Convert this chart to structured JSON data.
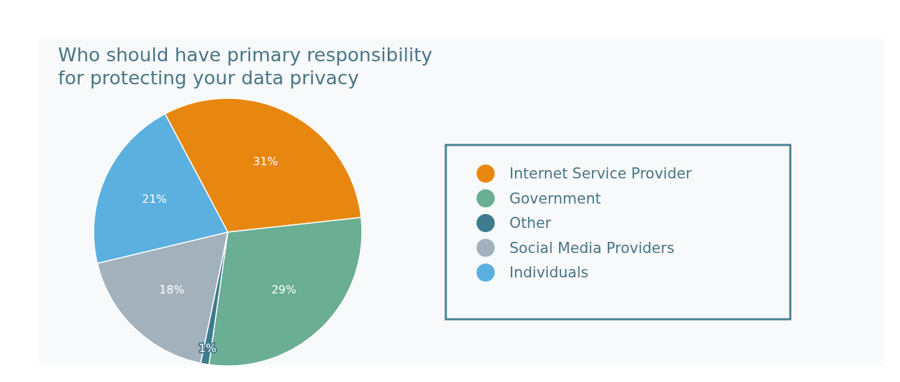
{
  "chart_data": {
    "type": "pie",
    "title": "Who should have primary responsibility\nfor protecting your data privacy",
    "categories": [
      "Internet Service Provider",
      "Government",
      "Other",
      "Social Media Providers",
      "Individuals"
    ],
    "values": [
      31,
      29,
      1,
      18,
      21
    ],
    "colors": [
      "#e8870f",
      "#6aae94",
      "#3f7b8e",
      "#a3b1bd",
      "#5bb0e0"
    ],
    "value_labels": [
      "31%",
      "29%",
      "1%",
      "18%",
      "21%"
    ],
    "legend": "right"
  }
}
